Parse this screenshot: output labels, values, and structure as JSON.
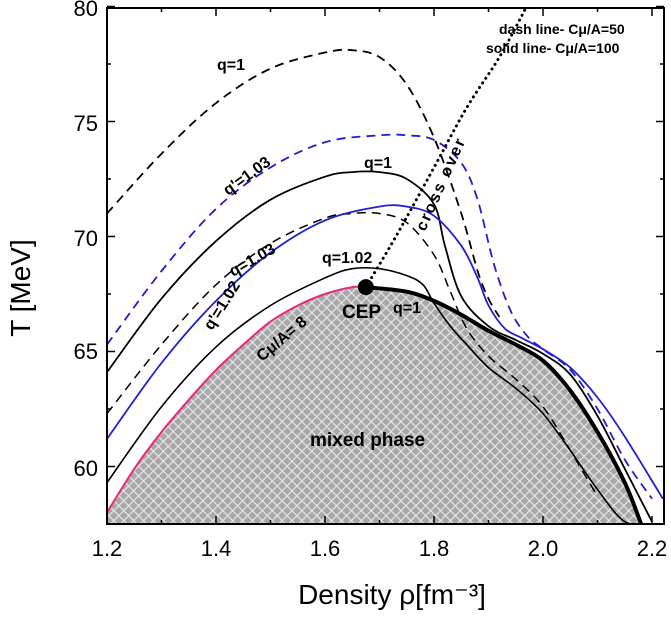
{
  "chart_data": {
    "type": "line",
    "xlabel": "Density ρ[fm⁻³]",
    "ylabel": "T [MeV]",
    "xlim": [
      1.2,
      2.22
    ],
    "ylim": [
      57.5,
      80
    ],
    "xticks": [
      "1.2",
      "1.4",
      "1.6",
      "1.8",
      "2.0",
      "2.2"
    ],
    "yticks": [
      "60",
      "65",
      "70",
      "75",
      "80"
    ],
    "legend_text": [
      "dash line- Cμ/A=50",
      "solid line- Cμ/A=100"
    ],
    "annotations": {
      "q1_top": "q=1",
      "qp103_top": "q'=1.03",
      "q1_mid": "q=1",
      "q103": "q=1.03",
      "qp102": "q'=1.02",
      "q102": "q=1.02",
      "cmu_inf": "Cμ/A= 8",
      "cep": "CEP",
      "q1_cep": "q=1",
      "crossover": "cross over",
      "mixed": "mixed phase"
    },
    "cep": {
      "x": 1.675,
      "y": 67.8
    },
    "series": [
      {
        "id": "c50-q1",
        "color": "#000000",
        "dash": true,
        "width": 1.8,
        "x": [
          1.2,
          1.3,
          1.4,
          1.5,
          1.6,
          1.65,
          1.7,
          1.75,
          1.8,
          1.85,
          1.88,
          1.9,
          1.92
        ],
        "y": [
          71.0,
          73.6,
          75.8,
          77.3,
          78.0,
          78.1,
          77.8,
          76.6,
          74.3,
          71.0,
          68.5,
          67.3,
          66.5
        ]
      },
      {
        "id": "c50-qp103",
        "color": "#1f1fd0",
        "dash": true,
        "width": 1.8,
        "x": [
          1.2,
          1.3,
          1.4,
          1.5,
          1.6,
          1.7,
          1.75,
          1.8,
          1.85,
          1.88,
          1.91,
          1.94,
          1.97,
          2.0,
          2.05,
          2.1,
          2.15,
          2.2
        ],
        "y": [
          65.3,
          68.5,
          71.2,
          73.0,
          74.1,
          74.4,
          74.4,
          74.2,
          73.2,
          71.6,
          68.8,
          66.8,
          65.7,
          65.1,
          64.2,
          62.5,
          60.3,
          58.6
        ]
      },
      {
        "id": "c50-q103",
        "color": "#000000",
        "dash": true,
        "width": 1.5,
        "x": [
          1.2,
          1.3,
          1.4,
          1.5,
          1.6,
          1.65,
          1.7,
          1.75,
          1.8,
          1.83,
          1.86,
          1.9,
          1.95,
          2.0,
          2.05,
          2.1
        ],
        "y": [
          62.3,
          65.3,
          67.9,
          69.7,
          70.8,
          71.0,
          71.0,
          70.6,
          69.2,
          67.6,
          66.0,
          64.8,
          63.8,
          62.6,
          60.7,
          58.7
        ]
      },
      {
        "id": "c100-q1",
        "color": "#000000",
        "dash": false,
        "width": 1.8,
        "x": [
          1.2,
          1.3,
          1.4,
          1.5,
          1.6,
          1.65,
          1.7,
          1.75,
          1.8,
          1.82,
          1.85,
          1.9,
          1.95,
          2.0,
          2.05,
          2.1,
          2.15,
          2.2
        ],
        "y": [
          64.1,
          67.3,
          69.8,
          71.6,
          72.6,
          72.8,
          72.8,
          72.5,
          71.4,
          69.6,
          67.4,
          66.1,
          65.5,
          64.9,
          64.0,
          62.2,
          59.9,
          57.6
        ]
      },
      {
        "id": "c100-qp103",
        "color": "#1f1fd0",
        "dash": false,
        "width": 1.8,
        "x": [
          1.2,
          1.3,
          1.4,
          1.5,
          1.6,
          1.7,
          1.75,
          1.8,
          1.85,
          1.88,
          1.9,
          1.93,
          1.96,
          2.0,
          2.05,
          2.1,
          2.15,
          2.22
        ],
        "y": [
          61.2,
          64.5,
          67.2,
          69.3,
          70.7,
          71.3,
          71.3,
          70.9,
          69.6,
          68.2,
          67.0,
          66.0,
          65.6,
          65.1,
          64.3,
          63.0,
          61.3,
          58.6
        ]
      },
      {
        "id": "c100-qp102",
        "color": "#000000",
        "dash": false,
        "width": 1.6,
        "x": [
          1.2,
          1.3,
          1.4,
          1.5,
          1.6,
          1.65,
          1.7,
          1.75,
          1.78,
          1.8,
          1.83,
          1.86,
          1.9,
          1.95,
          2.0,
          2.05,
          2.1,
          2.15,
          2.2
        ],
        "y": [
          59.3,
          62.6,
          65.2,
          67.0,
          68.2,
          68.6,
          68.6,
          68.3,
          67.9,
          67.1,
          66.1,
          65.3,
          64.3,
          63.4,
          62.3,
          60.7,
          59.0,
          57.6,
          57.5
        ]
      },
      {
        "id": "boundary-inf",
        "color": "#e8287a",
        "dash": false,
        "width": 2.0,
        "x": [
          1.2,
          1.25,
          1.3,
          1.35,
          1.4,
          1.45,
          1.5,
          1.55,
          1.6,
          1.65,
          1.675
        ],
        "y": [
          58.0,
          59.9,
          61.5,
          62.9,
          64.2,
          65.3,
          66.3,
          67.0,
          67.5,
          67.8,
          67.8
        ]
      },
      {
        "id": "boundary-right",
        "color": "#000000",
        "dash": false,
        "width": 4.0,
        "x": [
          1.675,
          1.75,
          1.8,
          1.85,
          1.9,
          1.95,
          2.0,
          2.05,
          2.1,
          2.15,
          2.18
        ],
        "y": [
          67.8,
          67.6,
          67.2,
          66.6,
          65.9,
          65.3,
          64.6,
          63.3,
          61.5,
          59.3,
          57.5
        ]
      },
      {
        "id": "crossover",
        "color": "#000000",
        "dash": "dot",
        "width": 3.0,
        "x": [
          1.675,
          1.73,
          1.8,
          1.86,
          1.92,
          1.97
        ],
        "y": [
          67.8,
          70.0,
          73.0,
          75.6,
          77.8,
          80.0
        ]
      }
    ]
  }
}
